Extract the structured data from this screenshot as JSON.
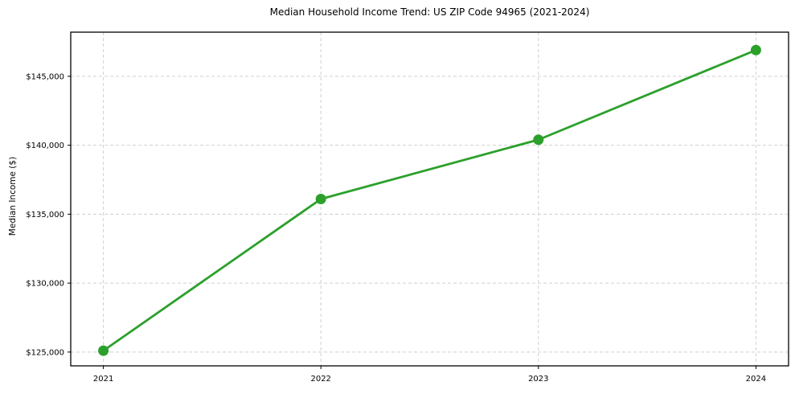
{
  "chart_data": {
    "type": "line",
    "title": "Median Household Income Trend: US ZIP Code 94965 (2021-2024)",
    "xlabel": "",
    "ylabel": "Median Income ($)",
    "x": [
      2021,
      2022,
      2023,
      2024
    ],
    "x_tick_labels": [
      "2021",
      "2022",
      "2023",
      "2024"
    ],
    "series": [
      {
        "name": "Median Household Income",
        "values": [
          125100,
          136100,
          140400,
          146900
        ]
      }
    ],
    "y_ticks": [
      125000,
      130000,
      135000,
      140000,
      145000
    ],
    "y_tick_labels": [
      "$125,000",
      "$130,000",
      "$135,000",
      "$140,000",
      "$145,000"
    ],
    "xlim": [
      2020.85,
      2024.15
    ],
    "ylim": [
      124000,
      148200
    ],
    "grid": true,
    "grid_style": "dashed",
    "legend": "none",
    "colors": {
      "line": "#2ca02c",
      "marker": "#2ca02c",
      "grid": "#d0d0d0",
      "spine": "#000000",
      "background": "#ffffff",
      "text": "#000000"
    },
    "marker_shape": "circle"
  }
}
